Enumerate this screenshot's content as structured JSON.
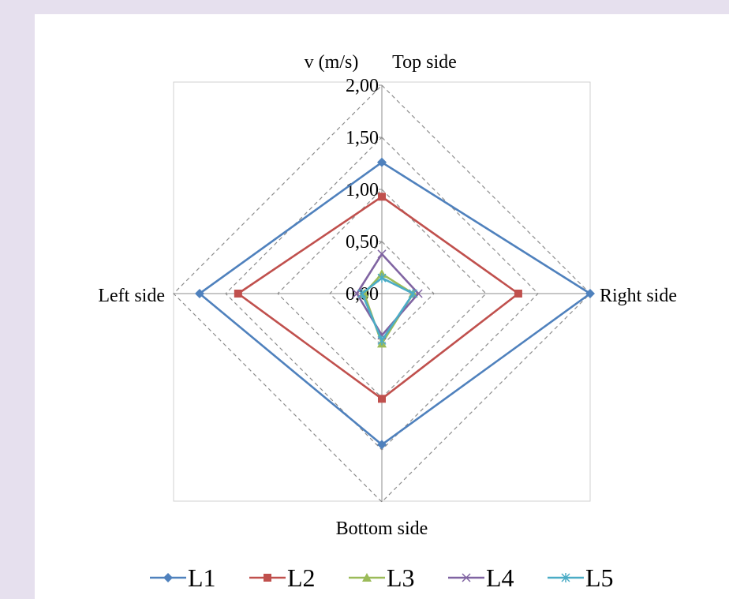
{
  "chart_data": {
    "type": "radar",
    "title": "",
    "unit_label": "v (m/s)",
    "axes": [
      "Top side",
      "Right side",
      "Bottom side",
      "Left side"
    ],
    "rlim": [
      0,
      2
    ],
    "ticks": [
      "0,00",
      "0,50",
      "1,00",
      "1,50",
      "2,00"
    ],
    "tick_values": [
      0,
      0.5,
      1.0,
      1.5,
      2.0
    ],
    "grid": true,
    "legend_position": "bottom",
    "series": [
      {
        "name": "L1",
        "values": [
          1.26,
          2.0,
          1.45,
          1.75
        ],
        "color": "#4f81bd",
        "marker": "diamond"
      },
      {
        "name": "L2",
        "values": [
          0.93,
          1.31,
          1.01,
          1.38
        ],
        "color": "#c0504d",
        "marker": "square"
      },
      {
        "name": "L3",
        "values": [
          0.19,
          0.3,
          0.48,
          0.17
        ],
        "color": "#9bbb59",
        "marker": "triangle"
      },
      {
        "name": "L4",
        "values": [
          0.38,
          0.35,
          0.4,
          0.24
        ],
        "color": "#8064a2",
        "marker": "x"
      },
      {
        "name": "L5",
        "values": [
          0.15,
          0.3,
          0.45,
          0.19
        ],
        "color": "#4bacc6",
        "marker": "star"
      }
    ]
  }
}
